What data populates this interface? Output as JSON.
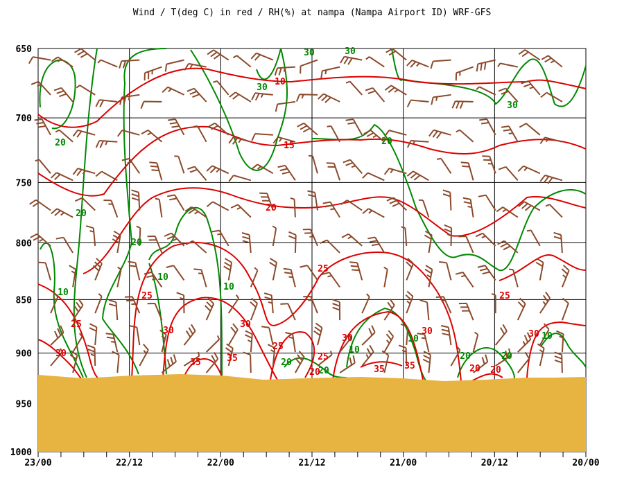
{
  "chart_data": {
    "type": "line",
    "title": "Wind / T(deg C) in red / RH(%) at nampa (Nampa Airport ID)  WRF-GFS",
    "ylabel": "",
    "xlabel": "",
    "y_axis": {
      "scale": "inverted-pressure",
      "range": [
        650,
        1000
      ],
      "ticks": [
        "650",
        "700",
        "750",
        "800",
        "850",
        "900",
        "950",
        "1000"
      ]
    },
    "x_axis": {
      "direction": "time-decreasing",
      "ticks": [
        "23/00",
        "22/12",
        "22/00",
        "21/12",
        "21/00",
        "20/12",
        "20/00"
      ]
    },
    "grid": true,
    "colors": {
      "temperature": "#dd0000",
      "humidity": "#008800",
      "wind": "#8b4a2b",
      "terrain": "#e8b441"
    },
    "series": [
      {
        "name": "T(deg C)",
        "color": "#dd0000",
        "contour_labels": [
          "10",
          "15",
          "20",
          "25",
          "25",
          "25",
          "25",
          "30",
          "30",
          "30",
          "30",
          "30",
          "35",
          "35",
          "35",
          "35",
          "20",
          "20",
          "20"
        ]
      },
      {
        "name": "RH(%)",
        "color": "#008800",
        "contour_labels": [
          "30",
          "30",
          "30",
          "30",
          "20",
          "20",
          "20",
          "20",
          "10",
          "10",
          "10",
          "10",
          "10",
          "10",
          "20",
          "20",
          "20"
        ]
      }
    ],
    "terrain_surface_hPa_approx": 925
  }
}
